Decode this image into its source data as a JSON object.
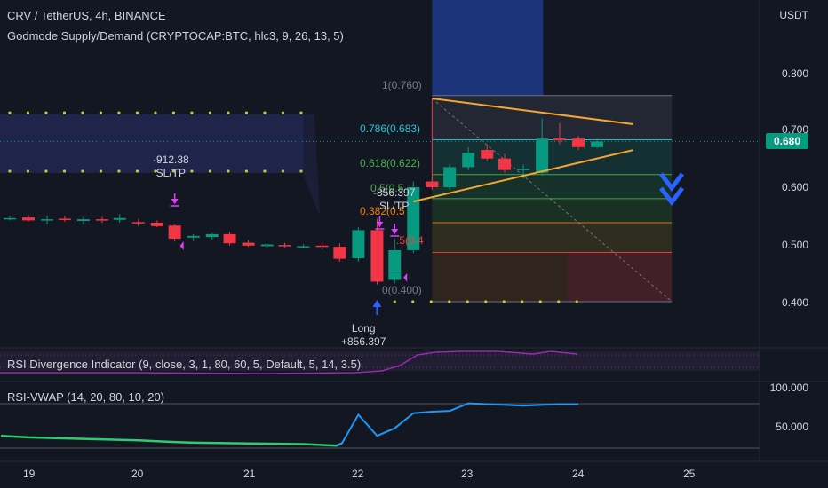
{
  "header": {
    "symbol_line": "CRV / TetherUS, 4h, BINANCE",
    "indicator_line": "Godmode Supply/Demand (CRYPTOCAP:BTC, hlc3, 9, 26, 13, 5)"
  },
  "price_axis": {
    "currency": "USDT",
    "ticks": [
      "0.800",
      "0.700",
      "0.600",
      "0.500",
      "0.400"
    ],
    "current_price": "0.680",
    "current_price_color": "#089981"
  },
  "time_axis": {
    "ticks": [
      "19",
      "20",
      "21",
      "22",
      "23",
      "24",
      "25"
    ]
  },
  "fib_levels": [
    {
      "label": "1(0.760)",
      "color": "#787b86"
    },
    {
      "label": "0.786(0.683)",
      "color": "#26c6da"
    },
    {
      "label": "0.618(0.622)",
      "color": "#4caf50"
    },
    {
      "label": "0.5(0.5",
      "color": "#4caf50"
    },
    {
      "label": "0.382(0.5",
      "color": "#f57c00"
    },
    {
      "label": ".5(0.4",
      "color": "#f44336"
    },
    {
      "label": "0(0.400)",
      "color": "#787b86"
    }
  ],
  "annotations": {
    "sltp_left_value": "-912.38",
    "sltp_left_label": "SL/TP",
    "sltp_right_value": "-856.397",
    "sltp_right_label": "SL/TP",
    "long_label": "Long",
    "long_value": "+856.397"
  },
  "indicators": {
    "rsi_divergence": {
      "label": "RSI Divergence Indicator (9, close, 3, 1, 80, 60, 5, Default, 5, 14, 3.5)"
    },
    "rsi_vwap": {
      "label": "RSI-VWAP (14, 20, 80, 10, 20)",
      "ticks": [
        "100.000",
        "50.000"
      ]
    }
  },
  "colors": {
    "background": "#131722",
    "up_candle": "#089981",
    "down_candle": "#f23645",
    "trend_line": "#f7a531",
    "signal_arrow": "#2962ff",
    "marker": "#e040fb",
    "dots": "#c9c935"
  },
  "chart_data": {
    "type": "candlestick",
    "timeframe": "4h",
    "ylim": [
      0.38,
      0.86
    ],
    "xlim": [
      18.75,
      25.25
    ],
    "candles": [
      {
        "t": 18.83,
        "o": 0.546,
        "h": 0.55,
        "l": 0.542,
        "c": 0.546
      },
      {
        "t": 19.0,
        "o": 0.547,
        "h": 0.552,
        "l": 0.54,
        "c": 0.542
      },
      {
        "t": 19.17,
        "o": 0.543,
        "h": 0.55,
        "l": 0.535,
        "c": 0.544
      },
      {
        "t": 19.33,
        "o": 0.545,
        "h": 0.55,
        "l": 0.54,
        "c": 0.543
      },
      {
        "t": 19.5,
        "o": 0.541,
        "h": 0.548,
        "l": 0.535,
        "c": 0.544
      },
      {
        "t": 19.67,
        "o": 0.544,
        "h": 0.548,
        "l": 0.538,
        "c": 0.542
      },
      {
        "t": 19.83,
        "o": 0.543,
        "h": 0.553,
        "l": 0.538,
        "c": 0.546
      },
      {
        "t": 20.0,
        "o": 0.539,
        "h": 0.545,
        "l": 0.532,
        "c": 0.537
      },
      {
        "t": 20.17,
        "o": 0.538,
        "h": 0.542,
        "l": 0.53,
        "c": 0.532
      },
      {
        "t": 20.33,
        "o": 0.533,
        "h": 0.535,
        "l": 0.505,
        "c": 0.51
      },
      {
        "t": 20.5,
        "o": 0.512,
        "h": 0.518,
        "l": 0.505,
        "c": 0.515
      },
      {
        "t": 20.67,
        "o": 0.513,
        "h": 0.52,
        "l": 0.508,
        "c": 0.518
      },
      {
        "t": 20.83,
        "o": 0.518,
        "h": 0.522,
        "l": 0.498,
        "c": 0.502
      },
      {
        "t": 21.0,
        "o": 0.503,
        "h": 0.508,
        "l": 0.496,
        "c": 0.498
      },
      {
        "t": 21.17,
        "o": 0.497,
        "h": 0.502,
        "l": 0.494,
        "c": 0.5
      },
      {
        "t": 21.33,
        "o": 0.499,
        "h": 0.503,
        "l": 0.495,
        "c": 0.497
      },
      {
        "t": 21.5,
        "o": 0.497,
        "h": 0.5,
        "l": 0.494,
        "c": 0.497
      },
      {
        "t": 21.67,
        "o": 0.498,
        "h": 0.505,
        "l": 0.492,
        "c": 0.496
      },
      {
        "t": 21.83,
        "o": 0.496,
        "h": 0.502,
        "l": 0.47,
        "c": 0.475
      },
      {
        "t": 22.0,
        "o": 0.476,
        "h": 0.5,
        "l": 0.47,
        "c": 0.495
      },
      {
        "t": 22.0,
        "o": 0.493,
        "h": 0.53,
        "l": 0.488,
        "c": 0.525
      },
      {
        "t": 22.17,
        "o": 0.525,
        "h": 0.545,
        "l": 0.43,
        "c": 0.435
      },
      {
        "t": 22.33,
        "o": 0.438,
        "h": 0.49,
        "l": 0.432,
        "c": 0.45
      },
      {
        "t": 22.33,
        "o": 0.45,
        "h": 0.51,
        "l": 0.445,
        "c": 0.49
      },
      {
        "t": 22.5,
        "o": 0.49,
        "h": 0.61,
        "l": 0.485,
        "c": 0.6
      },
      {
        "t": 22.67,
        "o": 0.61,
        "h": 0.62,
        "l": 0.595,
        "c": 0.6
      },
      {
        "t": 22.83,
        "o": 0.6,
        "h": 0.64,
        "l": 0.595,
        "c": 0.635
      },
      {
        "t": 23.0,
        "o": 0.635,
        "h": 0.67,
        "l": 0.63,
        "c": 0.66
      },
      {
        "t": 23.17,
        "o": 0.665,
        "h": 0.675,
        "l": 0.645,
        "c": 0.65
      },
      {
        "t": 23.33,
        "o": 0.65,
        "h": 0.658,
        "l": 0.625,
        "c": 0.63
      },
      {
        "t": 23.5,
        "o": 0.63,
        "h": 0.64,
        "l": 0.615,
        "c": 0.632
      },
      {
        "t": 23.67,
        "o": 0.625,
        "h": 0.72,
        "l": 0.62,
        "c": 0.685
      },
      {
        "t": 23.83,
        "o": 0.685,
        "h": 0.712,
        "l": 0.675,
        "c": 0.682
      },
      {
        "t": 24.0,
        "o": 0.685,
        "h": 0.69,
        "l": 0.665,
        "c": 0.67
      },
      {
        "t": 24.17,
        "o": 0.67,
        "h": 0.685,
        "l": 0.668,
        "c": 0.68
      }
    ],
    "fib_prices": [
      0.76,
      0.683,
      0.622,
      0.58,
      0.538,
      0.486,
      0.4
    ],
    "fib_range": {
      "t_start": 22.67,
      "t_end": 24.83
    },
    "trend_lines": [
      {
        "t1": 22.67,
        "y1": 0.755,
        "t2": 24.5,
        "y2": 0.71
      },
      {
        "t1": 22.5,
        "y1": 0.575,
        "t2": 24.5,
        "y2": 0.665
      }
    ],
    "dotted_levels": [
      {
        "y": 0.73,
        "t_start": 18.83,
        "t_end": 21.5
      },
      {
        "y": 0.628,
        "t_start": 18.83,
        "t_end": 21.5
      },
      {
        "y": 0.4,
        "t_start": 22.33,
        "t_end": 24.0
      }
    ],
    "rsi_vwap_series": {
      "x": [
        18.75,
        19.0,
        19.5,
        20.0,
        20.3,
        20.5,
        21.0,
        21.5,
        21.8,
        21.85,
        22.0,
        22.17,
        22.33,
        22.5,
        22.67,
        22.83,
        23.0,
        23.17,
        23.5,
        23.83,
        24.0
      ],
      "y": [
        28,
        26,
        24,
        22,
        20,
        19,
        18,
        17,
        15,
        18,
        56,
        28,
        38,
        58,
        60,
        61,
        71,
        70,
        68,
        70,
        70
      ]
    },
    "current_price": 0.68
  }
}
